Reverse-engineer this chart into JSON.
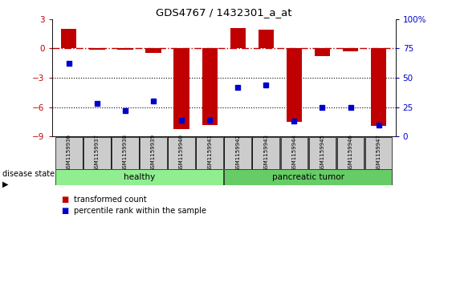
{
  "title": "GDS4767 / 1432301_a_at",
  "samples": [
    "GSM1159936",
    "GSM1159937",
    "GSM1159938",
    "GSM1159939",
    "GSM1159940",
    "GSM1159941",
    "GSM1159942",
    "GSM1159943",
    "GSM1159944",
    "GSM1159945",
    "GSM1159946",
    "GSM1159947"
  ],
  "transformed_count": [
    2.0,
    -0.15,
    -0.1,
    -0.5,
    -8.2,
    -7.8,
    2.1,
    1.9,
    -7.5,
    -0.8,
    -0.3,
    -7.9
  ],
  "percentile_rank": [
    62,
    28,
    22,
    30,
    14,
    14,
    42,
    44,
    13,
    25,
    25,
    10
  ],
  "n_healthy": 6,
  "bar_color": "#c00000",
  "dot_color": "#0000cc",
  "ylim_left": [
    -9,
    3
  ],
  "ylim_right": [
    0,
    100
  ],
  "yticks_left": [
    -9,
    -6,
    -3,
    0,
    3
  ],
  "yticks_right": [
    0,
    25,
    50,
    75,
    100
  ],
  "hline_y": 0,
  "dotted_lines": [
    -3,
    -6
  ],
  "healthy_color": "#90ee90",
  "tumor_color": "#66cc66",
  "label_box_color": "#cccccc",
  "legend_red_label": "transformed count",
  "legend_blue_label": "percentile rank within the sample",
  "disease_label": "disease state"
}
